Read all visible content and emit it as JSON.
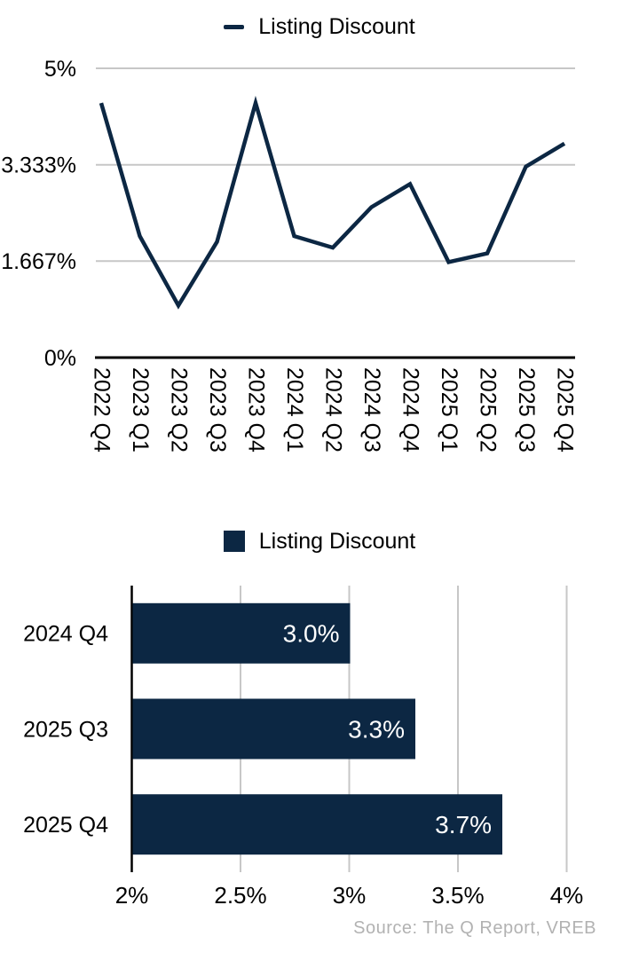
{
  "page": {
    "source_note": "Source: The Q Report, VREB"
  },
  "colors": {
    "accent_navy": "#0c2743",
    "gridline": "#c7c7c7",
    "axis": "#000000",
    "text": "#000000",
    "bar_label_text": "#ffffff",
    "source_text": "#b2b2b2"
  },
  "chart_data": [
    {
      "type": "line",
      "legend": "Listing Discount",
      "legend_position": "top",
      "categories": [
        "2022 Q4",
        "2023 Q1",
        "2023 Q2",
        "2023 Q3",
        "2023 Q4",
        "2024 Q1",
        "2024 Q2",
        "2024 Q3",
        "2024 Q4",
        "2025 Q1",
        "2025 Q2",
        "2025 Q3",
        "2025 Q4"
      ],
      "values": [
        4.4,
        2.1,
        0.9,
        2.0,
        4.4,
        2.1,
        1.9,
        2.6,
        3.0,
        1.65,
        1.8,
        3.3,
        3.7
      ],
      "unit": "%",
      "ylim": [
        0,
        5
      ],
      "yticks": [
        {
          "value": 0,
          "label": "0%"
        },
        {
          "value": 1.667,
          "label": "1.667%"
        },
        {
          "value": 3.333,
          "label": "3.333%"
        },
        {
          "value": 5,
          "label": "5%"
        }
      ],
      "grid": "horizontal",
      "x_tick_rotation": 90
    },
    {
      "type": "bar",
      "orientation": "horizontal",
      "legend": "Listing Discount",
      "legend_position": "top",
      "categories": [
        "2024 Q4",
        "2025 Q3",
        "2025 Q4"
      ],
      "values": [
        3.0,
        3.3,
        3.7
      ],
      "value_labels": [
        "3.0%",
        "3.3%",
        "3.7%"
      ],
      "unit": "%",
      "xlim": [
        2,
        4
      ],
      "xticks": [
        {
          "value": 2,
          "label": "2%"
        },
        {
          "value": 2.5,
          "label": "2.5%"
        },
        {
          "value": 3,
          "label": "3%"
        },
        {
          "value": 3.5,
          "label": "3.5%"
        },
        {
          "value": 4,
          "label": "4%"
        }
      ],
      "grid": "vertical"
    }
  ]
}
